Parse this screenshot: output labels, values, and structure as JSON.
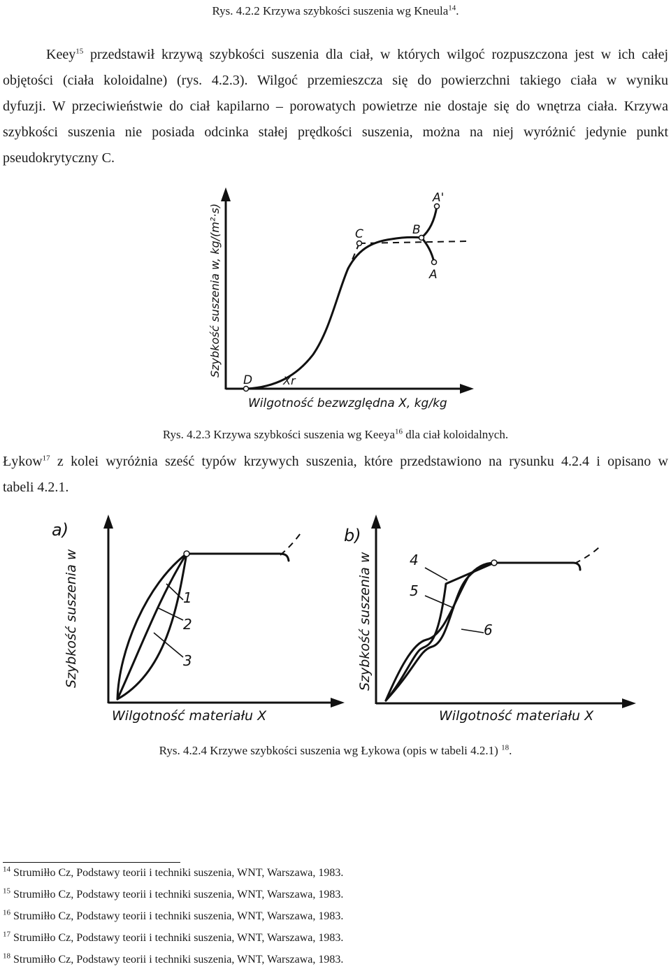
{
  "caption_top": {
    "text": "Rys. 4.2.2 Krzywa szybkości suszenia wg Kneula",
    "ref": "14",
    "end": "."
  },
  "para1": {
    "l1a": "Keey",
    "l1ref": "15",
    "l1b": " przedstawił krzywą szybkości suszenia dla ciał, w których wilgoć rozpuszczona jest w ich całej",
    "l2": "objętości (ciała koloidalne) (rys. 4.2.3). Wilgoć przemieszcza się do powierzchni takiego ciała w wyniku",
    "l3": "dyfuzji. W przeciwieństwie do ciał kapilarno – porowatych powietrze nie dostaje się do wnętrza ciała. Krzywa",
    "l4": "szybkości suszenia nie posiada odcinka stałej prędkości suszenia, można na niej wyróżnić jedynie punkt",
    "l5": "pseudokrytyczny C."
  },
  "fig3": {
    "ylabel": "Szybkość suszenia w, kg/(m²·s)",
    "xlabel": "Wilgotność bezwzględna X, kg/kg",
    "points": {
      "D": "D",
      "Xr": "Xr",
      "C": "C",
      "B": "B",
      "A": "A",
      "A_prime": "A'"
    }
  },
  "caption_fig3": {
    "text": "Rys. 4.2.3 Krzywa szybkości suszenia wg Keeya",
    "ref": "16",
    "end": " dla ciał koloidalnych."
  },
  "para2": {
    "l1a": "Łykow",
    "l1ref": "17",
    "l1b": " z kolei wyróżnia sześć typów krzywych suszenia, które przedstawiono na rysunku 4.2.4 i opisano w",
    "l2": "tabeli 4.2.1."
  },
  "fig4": {
    "a": {
      "panel": "a)",
      "ylabel": "Szybkość suszenia w",
      "xlabel": "Wilgotność materiału X",
      "curves": [
        "1",
        "2",
        "3"
      ]
    },
    "b": {
      "panel": "b)",
      "ylabel": "Szybkość suszenia w",
      "xlabel": "Wilgotność materiału X",
      "curves": [
        "4",
        "5",
        "6"
      ]
    }
  },
  "caption_fig4": {
    "text": "Rys. 4.2.4 Krzywe szybkości suszenia wg Łykowa (opis w tabeli 4.2.1) ",
    "ref": "18",
    "end": "."
  },
  "footnotes": [
    {
      "num": "14",
      "text": " Strumiłło Cz, Podstawy teorii i techniki suszenia, WNT, Warszawa, 1983."
    },
    {
      "num": "15",
      "text": " Strumiłło Cz, Podstawy teorii i techniki suszenia, WNT, Warszawa, 1983."
    },
    {
      "num": "16",
      "text": " Strumiłło Cz, Podstawy teorii i techniki suszenia, WNT, Warszawa, 1983."
    },
    {
      "num": "17",
      "text": " Strumiłło Cz, Podstawy teorii i techniki suszenia, WNT, Warszawa, 1983."
    },
    {
      "num": "18",
      "text": " Strumiłło Cz, Podstawy teorii i techniki suszenia, WNT, Warszawa, 1983."
    }
  ]
}
